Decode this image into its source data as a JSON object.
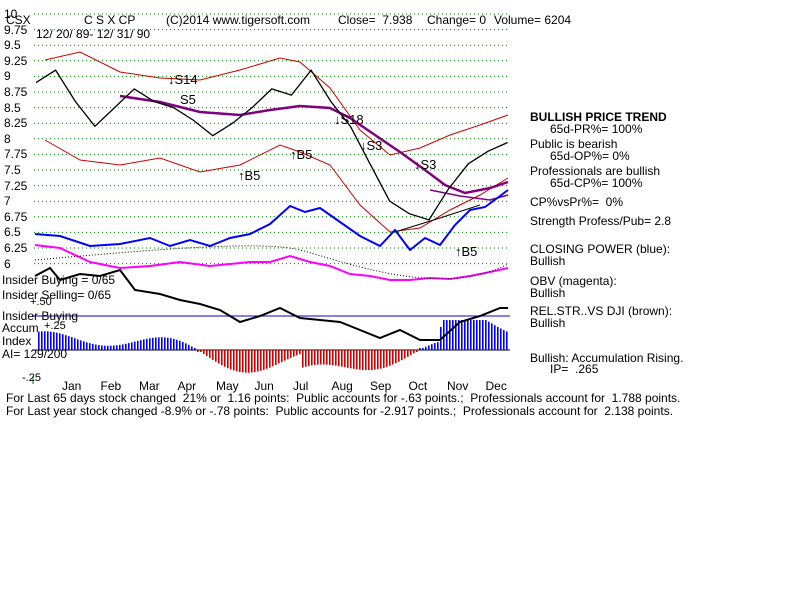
{
  "header": {
    "ticker": "CSX",
    "name": "C S X CP",
    "copyright": "(C)2014 www.tigersoft.com",
    "close": "Close=  7.938",
    "change": "Change= 0",
    "volume": "Volume= 6204",
    "date_range": "12/ 20/ 89- 12/ 31/ 90"
  },
  "right_panel": {
    "l1": "BULLISH PRICE TREND",
    "l2": "65d-PR%= 100%",
    "l3": "Public is bearish",
    "l4": "65d-OP%= 0%",
    "l5": "Professionals are bullish",
    "l6": "65d-CP%= 100%",
    "l7": "CP%vsPr%=  0%",
    "l8": "Strength Profess/Pub= 2.8",
    "l9": "CLOSING POWER (blue):",
    "l10": "Bullish",
    "l11": "OBV (magenta):",
    "l12": "Bullish",
    "l13": "REL.STR..VS DJI (brown):",
    "l14": "Bullish",
    "l15": "Bullish: Accumulation Rising.",
    "l16": "IP=  .265"
  },
  "indicators": {
    "ins_buy": "Insider Buying = 0/65",
    "ins_sell": "Insider Selling= 0/65",
    "p50": "+.50",
    "ins_buy2": "Insider Buying",
    "accum": "Accum",
    "p25": "+.25",
    "index": "Index",
    "ai": "AI= 129/200",
    "m25": "-.25"
  },
  "footer": {
    "line1": "For Last 65 days stock changed  21% or  1.16 points:  Public accounts for -.63 points.;  Professionals account for  1.788 points.",
    "line2": "For Last year stock changed -8.9% or -.78 points:  Public accounts for -2.917 points.;  Professionals account for  2.138 points."
  },
  "signals": {
    "s14": "S14",
    "s5": "S5",
    "s18": "S18",
    "s3a": "S3",
    "s3b": "S3",
    "b5a": "B5",
    "b5b": "B5",
    "b5c": "B5"
  },
  "colors": {
    "price": "#000000",
    "band": "#cc0000",
    "ma": "#800080",
    "closing_power": "#0000ff",
    "obv": "#ff00ff",
    "rel_strength": "#8b4513",
    "grid": "#008000",
    "accum_pos": "#0000ff",
    "accum_neg": "#cc0000"
  },
  "chart_data": {
    "type": "line",
    "title": "C S X CP",
    "ylim": [
      6,
      10
    ],
    "yticks": [
      "10",
      "9.75",
      "9.5",
      "9.25",
      "9",
      "8.75",
      "8.5",
      "8.25",
      "8",
      "7.75",
      "7.5",
      "7.25",
      "7",
      "6.75",
      "6.5",
      "6.25",
      "6"
    ],
    "months": [
      "Jan",
      "Feb",
      "Mar",
      "Apr",
      "May",
      "Jun",
      "Jul",
      "Aug",
      "Sep",
      "Oct",
      "Nov",
      "Dec"
    ],
    "series": [
      {
        "name": "price",
        "x": [
          0,
          0.5,
          1,
          1.5,
          2,
          2.5,
          3,
          3.5,
          4,
          4.5,
          5,
          5.5,
          6,
          6.5,
          7,
          7.5,
          8,
          8.5,
          9,
          9.5,
          10,
          10.5,
          11,
          11.5,
          12
        ],
        "values": [
          8.9,
          9.1,
          8.6,
          8.2,
          8.5,
          8.8,
          8.6,
          8.5,
          8.3,
          8.05,
          8.25,
          8.5,
          8.8,
          8.7,
          9.1,
          8.6,
          8.2,
          7.6,
          7.0,
          6.8,
          6.7,
          7.2,
          7.6,
          7.8,
          7.94
        ]
      }
    ]
  }
}
